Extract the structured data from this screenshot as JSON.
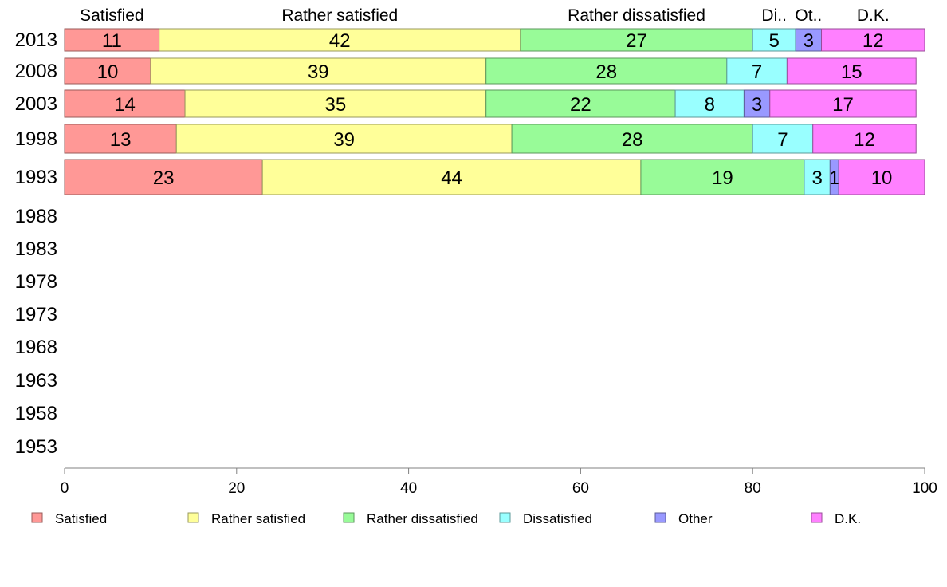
{
  "chart_data": {
    "type": "bar",
    "orientation": "horizontal",
    "stacked": true,
    "categories": [
      "2013",
      "2008",
      "2003",
      "1998",
      "1993",
      "1988",
      "1983",
      "1978",
      "1973",
      "1968",
      "1963",
      "1958",
      "1953"
    ],
    "series": [
      {
        "name": "Satisfied",
        "color": "#ff9896",
        "values": [
          11,
          10,
          14,
          13,
          23,
          null,
          null,
          null,
          null,
          null,
          null,
          null,
          null
        ]
      },
      {
        "name": "Rather satisfied",
        "color": "#ffff99",
        "values": [
          42,
          39,
          35,
          39,
          44,
          null,
          null,
          null,
          null,
          null,
          null,
          null,
          null
        ]
      },
      {
        "name": "Rather dissatisfied",
        "color": "#98fb98",
        "values": [
          27,
          28,
          22,
          28,
          19,
          null,
          null,
          null,
          null,
          null,
          null,
          null,
          null
        ]
      },
      {
        "name": "Dissatisfied",
        "color": "#99ffff",
        "values": [
          5,
          7,
          8,
          7,
          3,
          null,
          null,
          null,
          null,
          null,
          null,
          null,
          null
        ]
      },
      {
        "name": "Other",
        "color": "#9999ff",
        "values": [
          3,
          0,
          3,
          0,
          1,
          null,
          null,
          null,
          null,
          null,
          null,
          null,
          null
        ]
      },
      {
        "name": "D.K.",
        "color": "#ff80ff",
        "values": [
          12,
          15,
          17,
          12,
          10,
          null,
          null,
          null,
          null,
          null,
          null,
          null,
          null
        ]
      }
    ],
    "top_labels": [
      "Satisfied",
      "Rather satisfied",
      "Rather dissatisfied",
      "Di..",
      "Ot..",
      "D.K."
    ],
    "xlim": [
      0,
      100
    ],
    "xticks": [
      0,
      20,
      40,
      60,
      80,
      100
    ],
    "grid": false,
    "legend_position": "bottom"
  }
}
